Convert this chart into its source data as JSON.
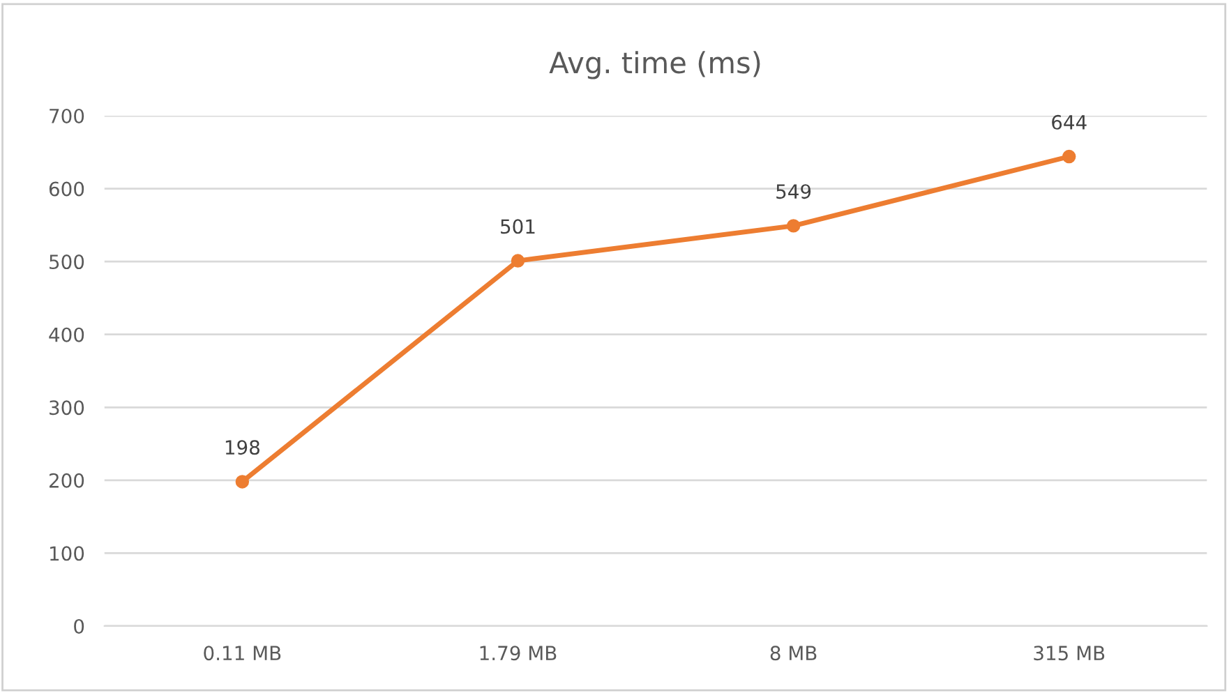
{
  "chart_data": {
    "type": "line",
    "title": "Avg. time (ms)",
    "categories": [
      "0.11 MB",
      "1.79 MB",
      "8 MB",
      "315 MB"
    ],
    "series": [
      {
        "color": "#ed7d31",
        "values": [
          198,
          501,
          549,
          644
        ]
      }
    ],
    "ylim": [
      0,
      700
    ],
    "yticks": [
      0,
      100,
      200,
      300,
      400,
      500,
      600,
      700
    ],
    "grid": "y",
    "marker": "circle",
    "line_style": "solid",
    "data_labels": true
  }
}
